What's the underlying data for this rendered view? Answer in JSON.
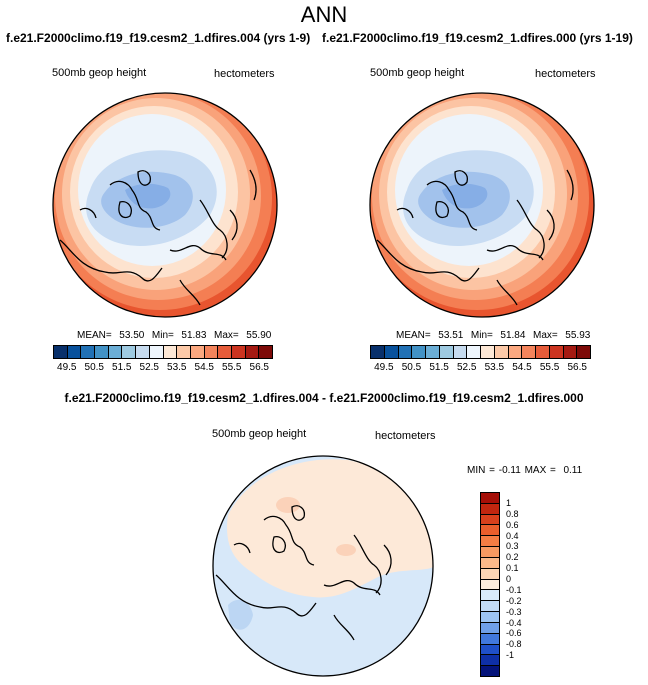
{
  "title": "ANN",
  "panels": [
    {
      "case_title": "f.e21.F2000climo.f19_f19.cesm2_1.dfires.004 (yrs 1-9)",
      "variable": "500mb geop height",
      "units": "hectometers",
      "mean_label": "MEAN=",
      "mean": "53.50",
      "min_label": "Min=",
      "min": "51.83",
      "max_label": "Max=",
      "max": "55.90"
    },
    {
      "case_title": "f.e21.F2000climo.f19_f19.cesm2_1.dfires.000 (yrs 1-19)",
      "variable": "500mb geop height",
      "units": "hectometers",
      "mean_label": "MEAN=",
      "mean": "53.51",
      "min_label": "Min=",
      "min": "51.84",
      "max_label": "Max=",
      "max": "55.93"
    }
  ],
  "colorbar": {
    "colors": [
      "#08306b",
      "#08519c",
      "#2171b5",
      "#4292c6",
      "#6baed6",
      "#9ecae1",
      "#c6dbef",
      "#eef5fc",
      "#fde8d6",
      "#fcc9a8",
      "#fba880",
      "#f4845c",
      "#e65c3a",
      "#cc3420",
      "#a51a12",
      "#7d0a08"
    ],
    "labels": [
      "49.5",
      "50.5",
      "51.5",
      "52.5",
      "53.5",
      "54.5",
      "55.5",
      "56.5"
    ]
  },
  "diff": {
    "title": "f.e21.F2000climo.f19_f19.cesm2_1.dfires.004 - f.e21.F2000climo.f19_f19.cesm2_1.dfires.000",
    "variable": "500mb geop height",
    "units": "hectometers",
    "min_label": "MIN =",
    "min": "-0.11",
    "max_label": "MAX =",
    "max": "0.11",
    "colorbar_colors": [
      "#a50f07",
      "#c0260f",
      "#d8401c",
      "#ea5e2c",
      "#f47d44",
      "#f89a62",
      "#fbb98a",
      "#fdd6b4",
      "#fdeedf",
      "#d9eafb",
      "#c2dcf7",
      "#9dc4f2",
      "#6f9fe8",
      "#4178dd",
      "#1f4fc8",
      "#0e2fa6",
      "#04137a"
    ],
    "colorbar_labels": [
      "1",
      "0.8",
      "0.6",
      "0.4",
      "0.3",
      "0.2",
      "0.1",
      "0",
      "-0.1",
      "-0.2",
      "-0.3",
      "-0.4",
      "-0.6",
      "-0.8",
      "-1"
    ]
  }
}
